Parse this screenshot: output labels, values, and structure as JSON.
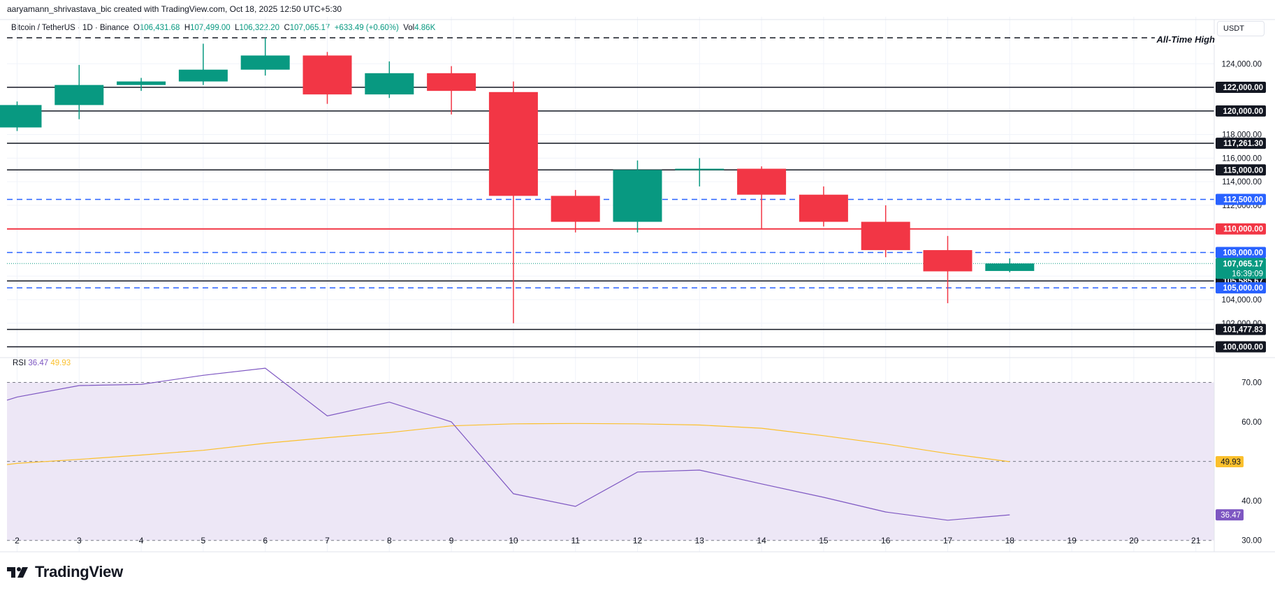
{
  "header": {
    "attribution": "aaryamann_shrivastava_bic created with TradingView.com, Oct 18, 2025 12:50 UTC+5:30"
  },
  "legend": {
    "symbol": "Bitcoin / TetherUS · 1D · Binance",
    "open_label": "O",
    "open": "106,431.68",
    "high_label": "H",
    "high": "107,499.00",
    "low_label": "L",
    "low": "106,322.20",
    "close_label": "C",
    "close": "107,065.17",
    "change": "+633.49 (+0.60%)",
    "vol_label": "Vol",
    "vol": "4.86K"
  },
  "price_axis_unit": "USDT",
  "ath_label": "All-Time High",
  "colors": {
    "up": "#089981",
    "down": "#f23645",
    "blue_line": "#2962ff",
    "red_line": "#f23645",
    "rsi_line": "#7e57c2",
    "rsi_ma": "#fbc02d",
    "rsi_band": "#ede7f6"
  },
  "brand": {
    "name": "TradingView"
  },
  "chart_data": {
    "type": "candlestick",
    "x_ticks": [
      "2",
      "3",
      "4",
      "5",
      "6",
      "7",
      "8",
      "9",
      "10",
      "11",
      "12",
      "13",
      "14",
      "15",
      "16",
      "17",
      "18",
      "19",
      "20",
      "21"
    ],
    "candles": [
      {
        "day": "2",
        "open": 118600,
        "high": 120800,
        "low": 118300,
        "close": 120500
      },
      {
        "day": "3",
        "open": 120500,
        "high": 123900,
        "low": 119300,
        "close": 122200
      },
      {
        "day": "4",
        "open": 122200,
        "high": 122800,
        "low": 121700,
        "close": 122500
      },
      {
        "day": "5",
        "open": 122500,
        "high": 125700,
        "low": 122200,
        "close": 123500
      },
      {
        "day": "6",
        "open": 123500,
        "high": 126200,
        "low": 123000,
        "close": 124700
      },
      {
        "day": "7",
        "open": 124700,
        "high": 125000,
        "low": 120600,
        "close": 121400
      },
      {
        "day": "8",
        "open": 121400,
        "high": 124200,
        "low": 121100,
        "close": 123200
      },
      {
        "day": "9",
        "open": 123200,
        "high": 123800,
        "low": 119700,
        "close": 121700
      },
      {
        "day": "10",
        "open": 121600,
        "high": 122500,
        "low": 102000,
        "close": 112800
      },
      {
        "day": "11",
        "open": 112800,
        "high": 113300,
        "low": 109700,
        "close": 110600
      },
      {
        "day": "12",
        "open": 110600,
        "high": 115800,
        "low": 109700,
        "close": 115000
      },
      {
        "day": "13",
        "open": 115000,
        "high": 116000,
        "low": 113600,
        "close": 115100
      },
      {
        "day": "14",
        "open": 115100,
        "high": 115300,
        "low": 110000,
        "close": 112900
      },
      {
        "day": "15",
        "open": 112900,
        "high": 113600,
        "low": 110200,
        "close": 110600
      },
      {
        "day": "16",
        "open": 110600,
        "high": 112000,
        "low": 107600,
        "close": 108200
      },
      {
        "day": "17",
        "open": 108200,
        "high": 109400,
        "low": 103700,
        "close": 106400
      },
      {
        "day": "18",
        "open": 106431.68,
        "high": 107499.0,
        "low": 106322.2,
        "close": 107065.17
      }
    ],
    "y_axis_ticks": [
      124000,
      122000,
      120000,
      118000,
      116000,
      114000,
      112000,
      110000,
      108000,
      106000,
      104000,
      102000,
      100000
    ],
    "y_axis_tick_labels": [
      "124,000.00",
      "122,000.00",
      "120,000.00",
      "118,000.00",
      "116,000.00",
      "114,000.00",
      "112,000.00",
      "110,000.00",
      "108,000.00",
      "106,000.00",
      "104,000.00",
      "102,000.00",
      "100,000.00"
    ],
    "ylim": [
      99500,
      126800
    ],
    "horizontal_levels": [
      {
        "value": 126199.63,
        "label": "",
        "style": "dashed",
        "color": "#131722"
      },
      {
        "value": 122000,
        "label": "122,000.00",
        "style": "solid",
        "color": "#131722"
      },
      {
        "value": 120000,
        "label": "120,000.00",
        "style": "solid",
        "color": "#131722"
      },
      {
        "value": 117261.3,
        "label": "117,261.30",
        "style": "solid",
        "color": "#131722"
      },
      {
        "value": 115000,
        "label": "115,000.00",
        "style": "solid",
        "color": "#131722"
      },
      {
        "value": 112500,
        "label": "112,500.00",
        "style": "dashed",
        "color": "#2962ff"
      },
      {
        "value": 110000,
        "label": "110,000.00",
        "style": "solid",
        "color": "#f23645"
      },
      {
        "value": 108000,
        "label": "108,000.00",
        "style": "dashed",
        "color": "#2962ff"
      },
      {
        "value": 105585.67,
        "label": "105,585.67",
        "style": "solid",
        "color": "#131722"
      },
      {
        "value": 105000,
        "label": "105,000.00",
        "style": "dashed",
        "color": "#2962ff"
      },
      {
        "value": 101477.83,
        "label": "101,477.83",
        "style": "solid",
        "color": "#131722"
      },
      {
        "value": 100000,
        "label": "100,000.00",
        "style": "solid",
        "color": "#131722"
      }
    ],
    "last_price": {
      "value": 107065.17,
      "label": "107,065.17",
      "countdown": "16:39:09"
    },
    "rsi": {
      "label": "RSI",
      "rsi_value_label": "36.47",
      "ma_value_label": "49.93",
      "rsi_values": [
        66.3,
        69.2,
        69.5,
        71.8,
        73.6,
        61.5,
        65.0,
        60.0,
        41.8,
        38.6,
        47.3,
        47.8,
        44.3,
        40.9,
        37.2,
        35.1,
        36.47
      ],
      "ma_values": [
        49.5,
        50.5,
        51.6,
        52.8,
        54.6,
        56.0,
        57.3,
        59.0,
        59.5,
        59.6,
        59.5,
        59.2,
        58.4,
        56.5,
        54.4,
        52.0,
        49.93
      ],
      "y_axis_ticks": [
        70,
        60,
        50,
        40,
        30
      ],
      "y_axis_tick_labels": [
        "70.00",
        "60.00",
        "",
        "40.00",
        "30.00"
      ],
      "band": [
        30,
        70
      ],
      "ylim": [
        28,
        74.5
      ]
    }
  }
}
